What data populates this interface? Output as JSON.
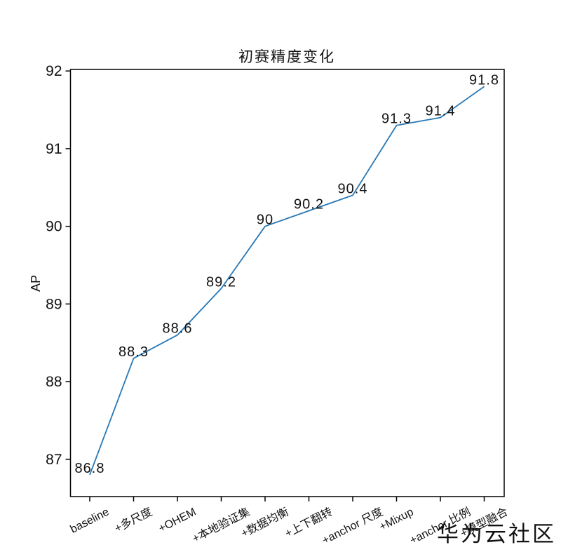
{
  "chart_data": {
    "type": "line",
    "title": "初赛精度变化",
    "xlabel": "",
    "ylabel": "AP",
    "categories": [
      "baseline",
      "+多尺度",
      "+OHEM",
      "+本地验证集",
      "+数据均衡",
      "+上下翻转",
      "+anchor 尺度",
      "+Mixup",
      "+anchor 比例",
      "+模型融合"
    ],
    "values": [
      86.8,
      88.3,
      88.6,
      89.2,
      90.0,
      90.2,
      90.4,
      91.3,
      91.4,
      91.8
    ],
    "point_labels": [
      "86.8",
      "88.3",
      "88.6",
      "89.2",
      "90",
      "90.2",
      "90.4",
      "91.3",
      "91.4",
      "91.8"
    ],
    "yticks": [
      87,
      88,
      89,
      90,
      91,
      92
    ],
    "ylim": [
      86.52,
      92.02
    ],
    "grid": false,
    "legend_position": "none",
    "line_color": "#2878b5",
    "axis_color": "#000000",
    "text_color": "#111111"
  },
  "watermark": {
    "text": "华为云社区",
    "color": "#bfbfbf"
  }
}
